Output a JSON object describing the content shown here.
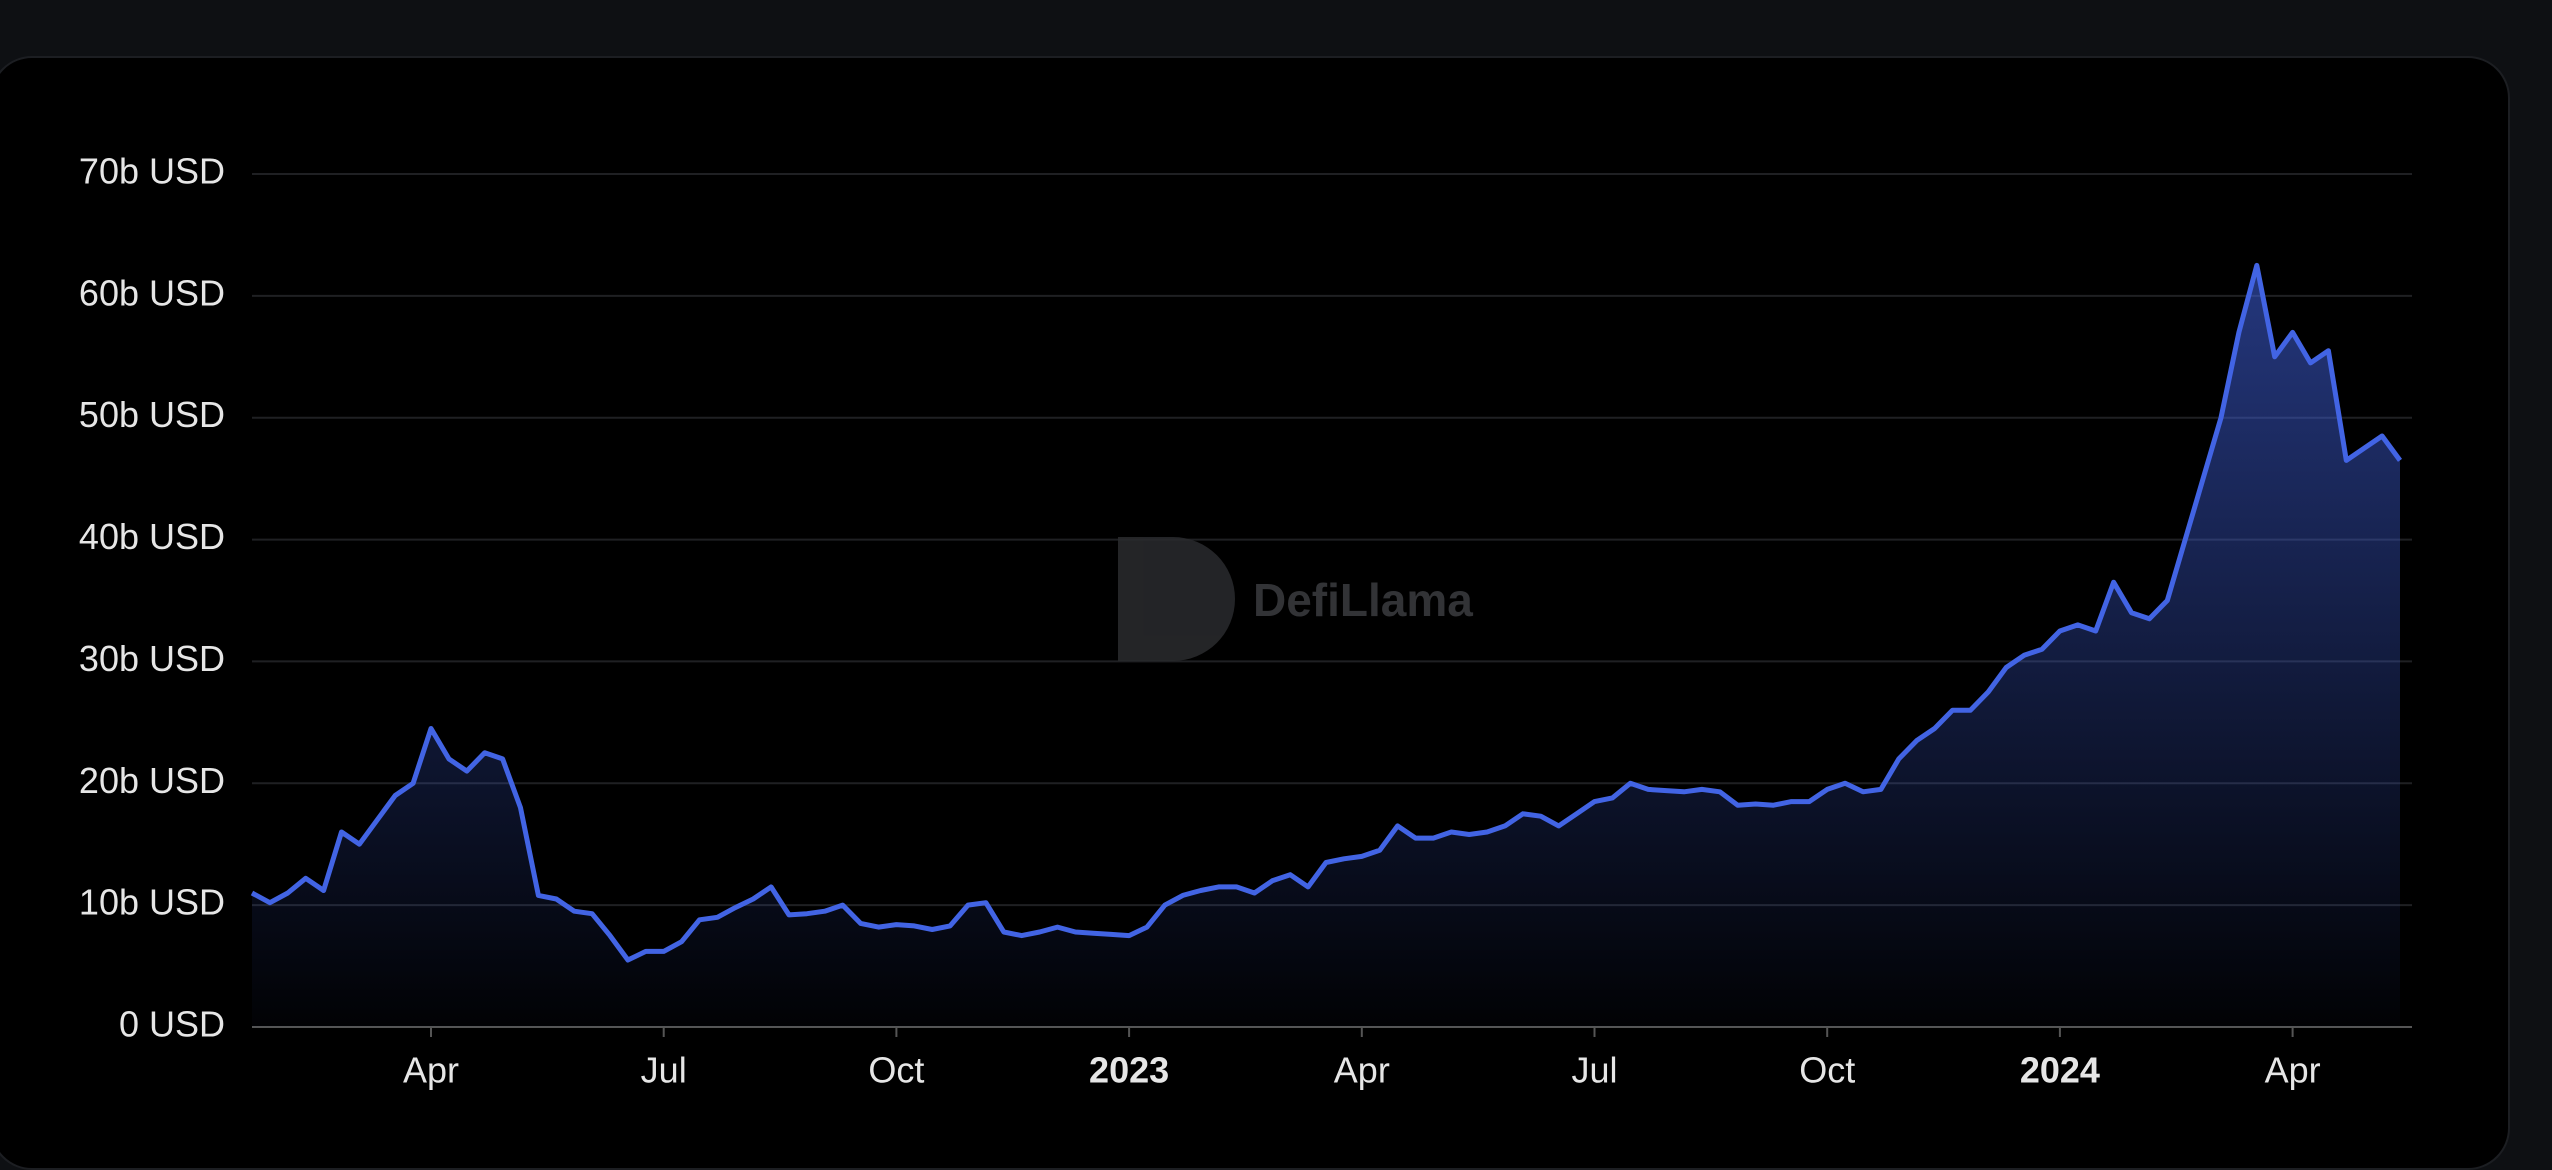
{
  "chart_data": {
    "type": "area",
    "watermark": "DefiLlama",
    "color": "#4264e4",
    "grid": true,
    "ylim": [
      0,
      70
    ],
    "yticks": [
      {
        "value": 0,
        "label": "0 USD"
      },
      {
        "value": 10,
        "label": "10b USD"
      },
      {
        "value": 20,
        "label": "20b USD"
      },
      {
        "value": 30,
        "label": "30b USD"
      },
      {
        "value": 40,
        "label": "40b USD"
      },
      {
        "value": 50,
        "label": "50b USD"
      },
      {
        "value": 60,
        "label": "60b USD"
      },
      {
        "value": 70,
        "label": "70b USD"
      }
    ],
    "categories": [
      null,
      null,
      null,
      null,
      null,
      null,
      null,
      null,
      null,
      null,
      "Apr",
      null,
      null,
      null,
      null,
      null,
      null,
      null,
      null,
      null,
      null,
      null,
      null,
      "Jul",
      null,
      null,
      null,
      null,
      null,
      null,
      null,
      null,
      null,
      null,
      null,
      null,
      "Oct",
      null,
      null,
      null,
      null,
      null,
      null,
      null,
      null,
      null,
      null,
      null,
      null,
      "2023",
      null,
      null,
      null,
      null,
      null,
      null,
      null,
      null,
      null,
      null,
      null,
      null,
      "Apr",
      null,
      null,
      null,
      null,
      null,
      null,
      null,
      null,
      null,
      null,
      null,
      null,
      "Jul",
      null,
      null,
      null,
      null,
      null,
      null,
      null,
      null,
      null,
      null,
      null,
      null,
      "Oct",
      null,
      null,
      null,
      null,
      null,
      null,
      null,
      null,
      null,
      null,
      null,
      null,
      "2024",
      null,
      null,
      null,
      null,
      null,
      null,
      null,
      null,
      null,
      null,
      null,
      null,
      "Apr",
      null,
      null,
      null,
      null,
      null,
      null
    ],
    "values": [
      11,
      10.2,
      11,
      12.2,
      11.2,
      16,
      15,
      17,
      19,
      20,
      24.5,
      22,
      21,
      22.5,
      22,
      18,
      10.8,
      10.5,
      9.5,
      9.3,
      7.5,
      5.5,
      6.2,
      6.2,
      7,
      8.8,
      9,
      9.8,
      10.5,
      11.5,
      9.2,
      9.3,
      9.5,
      10,
      8.5,
      8.2,
      8.4,
      8.3,
      8,
      8.3,
      10,
      10.2,
      7.8,
      7.5,
      7.8,
      8.2,
      7.8,
      7.7,
      7.6,
      7.5,
      8.2,
      10,
      10.8,
      11.2,
      11.5,
      11.5,
      11,
      12,
      12.5,
      11.5,
      13.5,
      13.8,
      14,
      14.5,
      16.5,
      15.5,
      15.5,
      16,
      15.8,
      16,
      16.5,
      17.5,
      17.3,
      16.5,
      17.5,
      18.5,
      18.8,
      20,
      19.5,
      19.4,
      19.3,
      19.5,
      19.3,
      18.2,
      18.3,
      18.2,
      18.5,
      18.5,
      19.5,
      20,
      19.3,
      19.5,
      22,
      23.5,
      24.5,
      26,
      26,
      27.5,
      29.5,
      30.5,
      31,
      32.5,
      33,
      32.5,
      36.5,
      34,
      33.5,
      35,
      40,
      45,
      50,
      57,
      62.5,
      55,
      57,
      54.5,
      55.5,
      46.5,
      47.5,
      48.5,
      46.5
    ]
  }
}
